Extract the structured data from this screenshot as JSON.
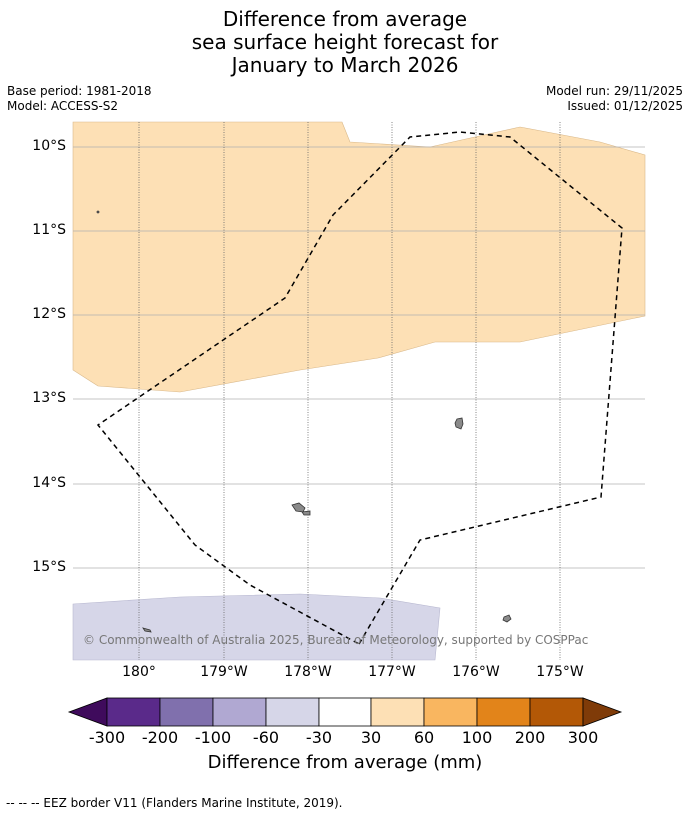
{
  "title_lines": [
    "Difference from average",
    "sea surface height forecast for",
    "January to March 2026"
  ],
  "meta_left": {
    "base_period": "Base period: 1981-2018",
    "model": "Model: ACCESS-S2"
  },
  "meta_right": {
    "model_run": "Model run: 29/11/2025",
    "issued": "Issued: 01/12/2025"
  },
  "lat_labels": [
    "10°S",
    "11°S",
    "12°S",
    "13°S",
    "14°S",
    "15°S"
  ],
  "lon_labels": [
    "180°",
    "179°W",
    "178°W",
    "177°W",
    "176°W",
    "175°W"
  ],
  "copyright": "© Commonwealth of Australia 2025, Bureau of Meteorology, supported by COSPPac",
  "colorbar": {
    "title": "Difference from average (mm)",
    "tick_labels": [
      "-300",
      "-200",
      "-100",
      "-60",
      "-30",
      "30",
      "60",
      "100",
      "200",
      "300"
    ],
    "colors": [
      "#3f0b5c",
      "#5a2a8a",
      "#8070ad",
      "#b0a8d2",
      "#d6d6e8",
      "#ffffff",
      "#fde0b5",
      "#f9b660",
      "#e2841a",
      "#b35806",
      "#7f3b08"
    ]
  },
  "footer": "--  --  -- EEZ border V11 (Flanders Marine Institute, 2019).",
  "colors": {
    "positive_anomaly": "#fde0b5",
    "negative_anomaly": "#d6d6e8",
    "land": "#8a8a8a"
  }
}
